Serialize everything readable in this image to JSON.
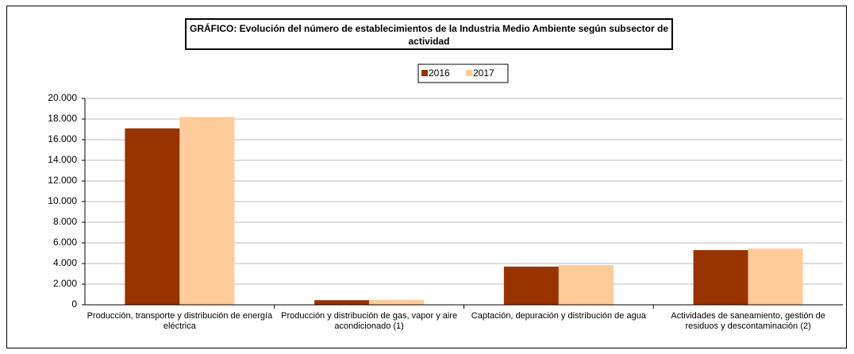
{
  "chart_data": {
    "type": "bar",
    "title": "GRÁFICO: Evolución del número de establecimientos de la Industria Medio Ambiente según subsector de actividad",
    "categories": [
      "Producción, transporte y distribución de energía eléctrica",
      "Producción y distribución de gas, vapor y aire acondicionado (1)",
      "Captación, depuración y distribución de agua",
      "Actividades de saneamiento, gestión de residuos y descontaminación (2)"
    ],
    "series": [
      {
        "name": "2016",
        "color": "#993300",
        "values": [
          17100,
          450,
          3700,
          5300
        ]
      },
      {
        "name": "2017",
        "color": "#FFCC99",
        "values": [
          18200,
          480,
          3850,
          5450
        ]
      }
    ],
    "ylim": [
      0,
      20000
    ],
    "yticks": [
      0,
      {
        "value": 2000,
        "label": "2.000"
      },
      {
        "value": 4000,
        "label": "4.000"
      },
      {
        "value": 6000,
        "label": "6.000"
      },
      {
        "value": 8000,
        "label": "8.000"
      },
      {
        "value": 10000,
        "label": "10.000"
      },
      {
        "value": 12000,
        "label": "12.000"
      },
      {
        "value": 14000,
        "label": "14.000"
      },
      {
        "value": 16000,
        "label": "16.000"
      },
      {
        "value": 18000,
        "label": "18.000"
      },
      {
        "value": 20000,
        "label": "20.000"
      }
    ],
    "grid": true,
    "legend": "top"
  }
}
